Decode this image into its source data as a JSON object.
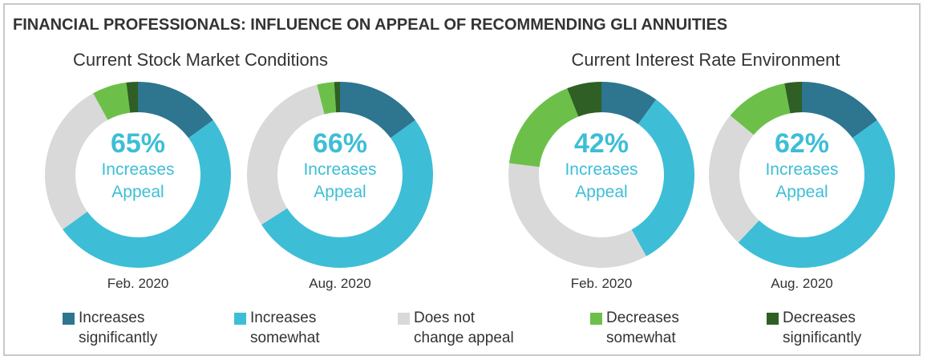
{
  "title": "FINANCIAL PROFESSIONALS: INFLUENCE ON APPEAL OF RECOMMENDING GLI ANNUITIES",
  "group_titles": [
    "Current Stock Market Conditions",
    "Current Interest Rate Environment"
  ],
  "chart_data": [
    {
      "type": "donut",
      "label": "Feb. 2020",
      "center_text": "65%",
      "center_caption": "Increases Appeal",
      "categories": [
        "Increases significantly",
        "Increases somewhat",
        "Does not change appeal",
        "Decreases somewhat",
        "Decreases significantly"
      ],
      "values": [
        15,
        50,
        27,
        6,
        2
      ],
      "colors": [
        "#2e7590",
        "#3dbed6",
        "#d9d9d9",
        "#6cc04a",
        "#2f5f24"
      ]
    },
    {
      "type": "donut",
      "label": "Aug. 2020",
      "center_text": "66%",
      "center_caption": "Increases Appeal",
      "categories": [
        "Increases significantly",
        "Increases somewhat",
        "Does not change appeal",
        "Decreases somewhat",
        "Decreases significantly"
      ],
      "values": [
        15,
        51,
        30,
        3,
        1
      ],
      "colors": [
        "#2e7590",
        "#3dbed6",
        "#d9d9d9",
        "#6cc04a",
        "#2f5f24"
      ]
    },
    {
      "type": "donut",
      "label": "Feb. 2020",
      "center_text": "42%",
      "center_caption": "Increases Appeal",
      "categories": [
        "Increases significantly",
        "Increases somewhat",
        "Does not change appeal",
        "Decreases somewhat",
        "Decreases significantly"
      ],
      "values": [
        10,
        32,
        35,
        17,
        6
      ],
      "colors": [
        "#2e7590",
        "#3dbed6",
        "#d9d9d9",
        "#6cc04a",
        "#2f5f24"
      ]
    },
    {
      "type": "donut",
      "label": "Aug. 2020",
      "center_text": "62%",
      "center_caption": "Increases Appeal",
      "categories": [
        "Increases significantly",
        "Increases somewhat",
        "Does not change appeal",
        "Decreases somewhat",
        "Decreases significantly"
      ],
      "values": [
        15,
        47,
        24,
        11,
        3
      ],
      "colors": [
        "#2e7590",
        "#3dbed6",
        "#d9d9d9",
        "#6cc04a",
        "#2f5f24"
      ]
    }
  ]
}
